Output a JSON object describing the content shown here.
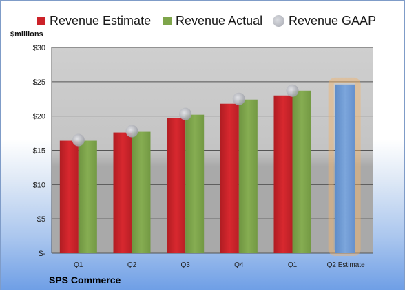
{
  "chart_data": {
    "type": "bar",
    "title": "",
    "footer": "SPS Commerce",
    "ylabel": "$millions",
    "ylim": [
      0,
      30
    ],
    "yticks": [
      {
        "value": 0,
        "label": "$-"
      },
      {
        "value": 5,
        "label": "$5"
      },
      {
        "value": 10,
        "label": "$10"
      },
      {
        "value": 15,
        "label": "$15"
      },
      {
        "value": 20,
        "label": "$20"
      },
      {
        "value": 25,
        "label": "$25"
      },
      {
        "value": 30,
        "label": "$30"
      }
    ],
    "categories": [
      "Q1",
      "Q2",
      "Q3",
      "Q4",
      "Q1",
      "Q2 Estimate"
    ],
    "series": [
      {
        "name": "Revenue Estimate",
        "color": "#cc2229",
        "values": [
          16.4,
          17.6,
          19.7,
          21.8,
          23.0,
          null
        ]
      },
      {
        "name": "Revenue Actual",
        "color": "#7ea54a",
        "values": [
          16.4,
          17.7,
          20.2,
          22.4,
          23.7,
          null
        ]
      },
      {
        "name": "Revenue GAAP",
        "color": "#b4b6bd",
        "marker": "circle",
        "values": [
          16.5,
          17.8,
          20.3,
          22.5,
          23.7,
          null
        ]
      },
      {
        "name": "Q2 Estimate",
        "color": "#6f9bd4",
        "highlight": "#f1b36a",
        "values": [
          null,
          null,
          null,
          null,
          null,
          24.6
        ]
      }
    ],
    "grid": true,
    "legend": "top"
  }
}
